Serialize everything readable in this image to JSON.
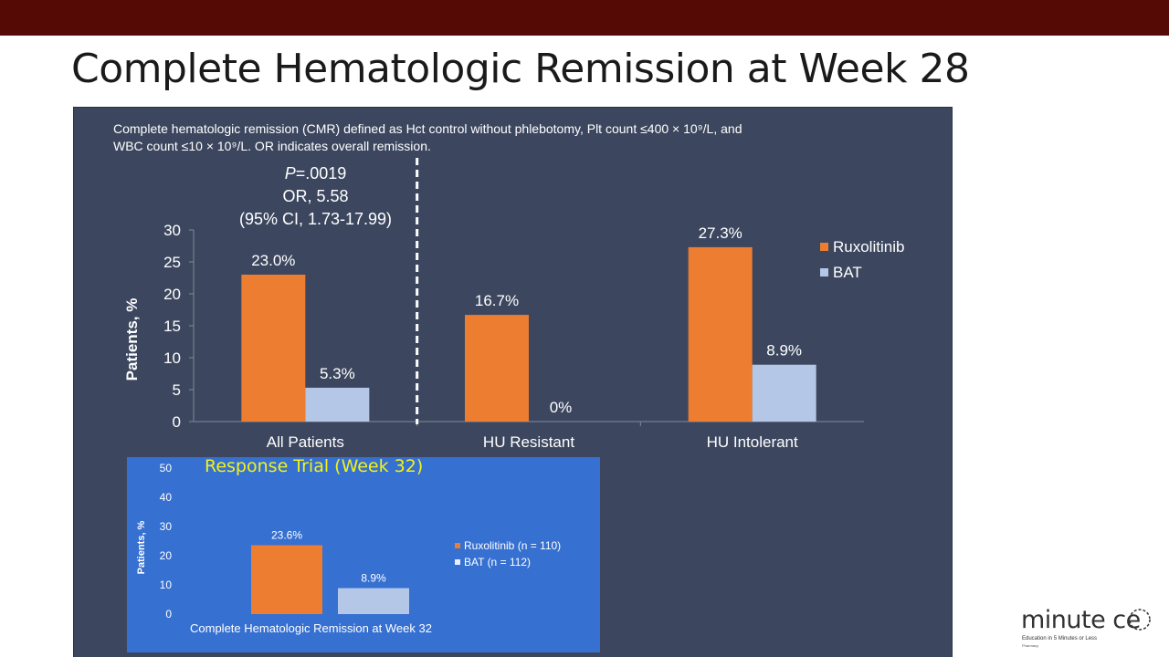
{
  "slide": {
    "title": "Complete Hematologic Remission at Week 28"
  },
  "note": {
    "line1": "Complete hematologic remission (CMR) defined as Hct control without phlebotomy, Plt count ≤400 × 10⁹/L, and",
    "line2": "WBC count ≤10 × 10⁹/L. OR indicates overall remission."
  },
  "stats": {
    "p_italic": "P",
    "p_value": "=.0019",
    "or": "OR, 5.58",
    "ci": "(95% CI, 1.73-17.99)"
  },
  "inset": {
    "title": "Response Trial (Week 32)",
    "caption": "Complete Hematologic Remission at Week 32"
  },
  "logo": {
    "word": "minute ce",
    "tagline": "Education in 5 Minutes or Less",
    "sub": "Pharmacy"
  },
  "colors": {
    "ruxolitinib": "#ed7d31",
    "bat": "#b4c7e7",
    "panel_bg": "#3c475f",
    "inset_bg": "#3670d1",
    "topbar": "#560a05",
    "inset_title": "#f2f21a"
  },
  "chart_data": [
    {
      "type": "bar",
      "categories": [
        "All Patients",
        "HU Resistant",
        "HU Intolerant"
      ],
      "series": [
        {
          "name": "Ruxolitinib",
          "values": [
            23.0,
            16.7,
            27.3
          ],
          "labels": [
            "23.0%",
            "16.7%",
            "27.3%"
          ]
        },
        {
          "name": "BAT",
          "values": [
            5.3,
            0,
            8.9
          ],
          "labels": [
            "5.3%",
            "0%",
            "8.9%"
          ]
        }
      ],
      "ylabel": "Patients, %",
      "ylim": [
        0,
        30
      ],
      "yticks": [
        0,
        5,
        10,
        15,
        20,
        25,
        30
      ],
      "legend": "right",
      "grid": false
    },
    {
      "type": "bar",
      "title": "Response Trial (Week 32)",
      "categories": [
        "Complete Hematologic Remission at Week 32"
      ],
      "series": [
        {
          "name": "Ruxolitinib (n = 110)",
          "values": [
            23.6
          ],
          "labels": [
            "23.6%"
          ]
        },
        {
          "name": "BAT (n = 112)",
          "values": [
            8.9
          ],
          "labels": [
            "8.9%"
          ]
        }
      ],
      "ylabel": "Patients, %",
      "ylim": [
        0,
        50
      ],
      "yticks": [
        0,
        10,
        20,
        30,
        40,
        50
      ],
      "legend": "right",
      "grid": false
    }
  ]
}
